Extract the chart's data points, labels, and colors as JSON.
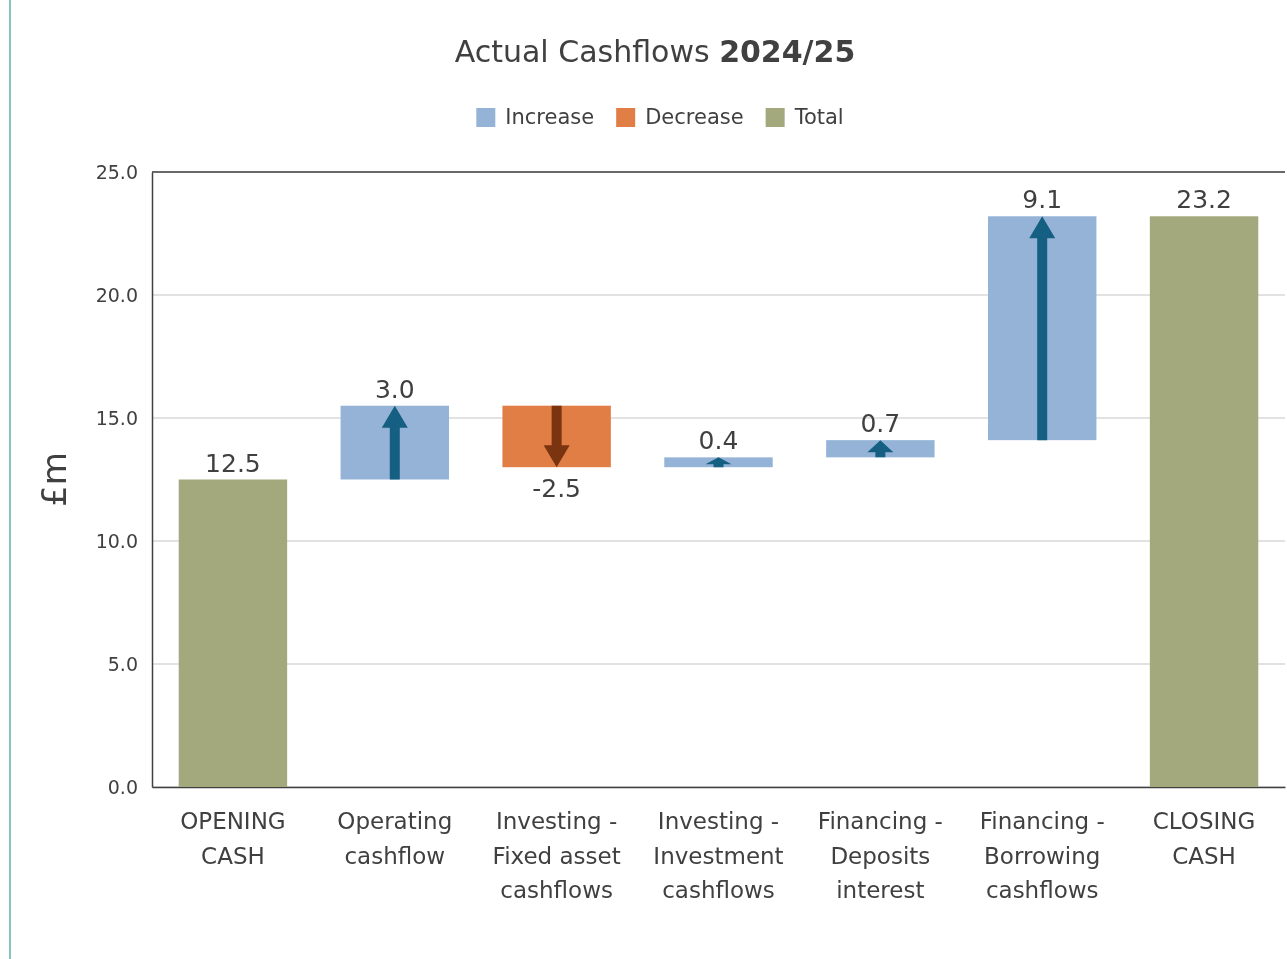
{
  "chart_data": {
    "type": "bar",
    "title": "Actual Cashflows 2024/25",
    "ylabel": "£m",
    "categories": [
      "OPENING CASH",
      "Operating cashflow",
      "Investing - Fixed asset cashflows",
      "Investing - Investment cashflows",
      "Financing - Deposits interest",
      "Financing - Borrowing cashflows",
      "CLOSING CASH"
    ],
    "series": [
      {
        "name": "Increase",
        "color": "#95b3d7",
        "values": [
          null,
          3.0,
          null,
          0.4,
          0.7,
          9.1,
          null
        ],
        "base": [
          null,
          12.5,
          null,
          13.0,
          13.4,
          14.1,
          null
        ],
        "value_labels": [
          null,
          "3.0",
          null,
          "0.4",
          "0.7",
          "9.1",
          null
        ]
      },
      {
        "name": "Decrease",
        "color": "#e07e45",
        "values": [
          null,
          null,
          -2.5,
          null,
          null,
          null,
          null
        ],
        "base": [
          null,
          null,
          15.5,
          null,
          null,
          null,
          null
        ],
        "value_labels": [
          null,
          null,
          "-2.5",
          null,
          null,
          null,
          null
        ]
      },
      {
        "name": "Total",
        "color": "#a3a97d",
        "values": [
          12.5,
          null,
          null,
          null,
          null,
          null,
          23.2
        ],
        "base": [
          0,
          null,
          null,
          null,
          null,
          null,
          0
        ],
        "value_labels": [
          "12.5",
          null,
          null,
          null,
          null,
          null,
          "23.2"
        ]
      }
    ],
    "ylim": [
      0,
      25
    ],
    "yticks": [
      {
        "value": 0,
        "label": "0.0"
      },
      {
        "value": 5,
        "label": "5.0"
      },
      {
        "value": 10,
        "label": "10.0"
      },
      {
        "value": 15,
        "label": "15.0"
      },
      {
        "value": 20,
        "label": "20.0"
      },
      {
        "value": 25,
        "label": "25.0"
      }
    ],
    "grid": "y",
    "legend": "top"
  }
}
